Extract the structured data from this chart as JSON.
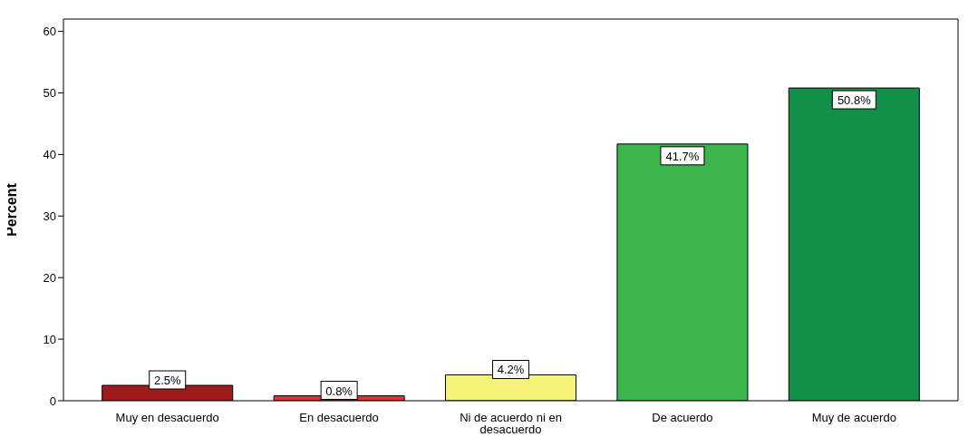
{
  "chart_data": {
    "type": "bar",
    "ylabel": "Percent",
    "categories": [
      "Muy en desacuerdo",
      "En desacuerdo",
      "Ni de acuerdo ni en desacuerdo",
      "De acuerdo",
      "Muy de acuerdo"
    ],
    "values": [
      2.5,
      0.8,
      4.2,
      41.7,
      50.8
    ],
    "colors": [
      "#a01c1c",
      "#e8312f",
      "#f7f37a",
      "#3bb54a",
      "#12904a"
    ],
    "value_labels": [
      "2.5%",
      "0.8%",
      "4.2%",
      "41.7%",
      "50.8%"
    ],
    "ylim": [
      0,
      62
    ],
    "yticks": [
      0,
      10,
      20,
      30,
      40,
      50,
      60
    ],
    "grid": false,
    "legend": false
  }
}
